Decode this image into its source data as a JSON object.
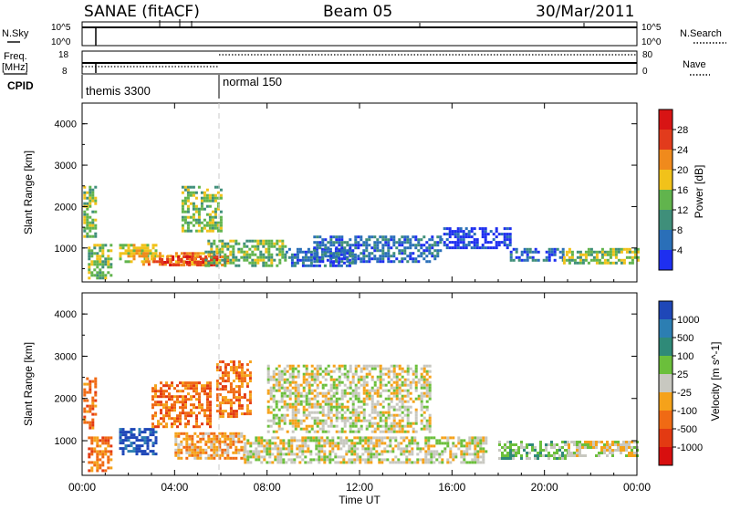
{
  "header": {
    "title": "SANAE (fitACF)",
    "beam": "Beam 05",
    "date": "30/Mar/2011"
  },
  "top_strip": {
    "left_label": "N.Sky",
    "left_ticks": [
      "10^5",
      "10^0"
    ],
    "right_ticks": [
      "10^5",
      "10^0"
    ],
    "right_label": "N.Search",
    "freq_label_1": "Freq.",
    "freq_label_2": "[MHz]",
    "freq_ticks": [
      "18",
      "8"
    ],
    "nave_ticks": [
      "80",
      "0"
    ],
    "nave_label": "Nave",
    "cpid_label": "CPID",
    "cpid_segments": [
      {
        "label": "themis 3300",
        "start_hour": 0.0
      },
      {
        "label": "normal 150",
        "start_hour": 6.0
      }
    ]
  },
  "x_axis": {
    "ticks": [
      "00:00",
      "04:00",
      "08:00",
      "12:00",
      "16:00",
      "20:00",
      "00:00"
    ],
    "label": "Time UT"
  },
  "y_axis": {
    "label": "Slant Range [km]",
    "ticks": [
      "1000",
      "2000",
      "3000",
      "4000"
    ]
  },
  "power_colorbar": {
    "label": "Power [dB]",
    "ticks": [
      "4",
      "8",
      "12",
      "16",
      "20",
      "24",
      "28"
    ],
    "colors": [
      "#1e2ff0",
      "#2a6fb8",
      "#3f8f7a",
      "#61b44d",
      "#f1c21a",
      "#f08a1c",
      "#e23b1c",
      "#d81414"
    ]
  },
  "velocity_colorbar": {
    "label": "Velocity [m s^-1]",
    "ticks": [
      "1000",
      "500",
      "100",
      "25",
      "-25",
      "-100",
      "-500",
      "-1000"
    ],
    "colors": [
      "#1f47b8",
      "#2c7eb2",
      "#2f8a78",
      "#6bbf3b",
      "#c8c8c0",
      "#f5a21a",
      "#f06a14",
      "#e33a12",
      "#d80f0f"
    ]
  },
  "chart_data": [
    {
      "type": "heatmap",
      "title": "Power",
      "xlabel": "Time UT",
      "ylabel": "Slant Range [km]",
      "xlim": [
        0,
        24
      ],
      "ylim": [
        180,
        4500
      ],
      "regions": [
        {
          "t0": 0.05,
          "t1": 0.55,
          "r0": 1300,
          "r1": 2500,
          "level": 3
        },
        {
          "t0": 0.25,
          "t1": 1.2,
          "r0": 300,
          "r1": 1100,
          "level": 3
        },
        {
          "t0": 1.6,
          "t1": 3.2,
          "r0": 700,
          "r1": 1100,
          "level": 4
        },
        {
          "t0": 2.6,
          "t1": 5.9,
          "r0": 600,
          "r1": 900,
          "level": 5
        },
        {
          "t0": 3.4,
          "t1": 6.3,
          "r0": 620,
          "r1": 820,
          "level": 6
        },
        {
          "t0": 4.3,
          "t1": 6.0,
          "r0": 1400,
          "r1": 2500,
          "level": 3
        },
        {
          "t0": 5.3,
          "t1": 8.8,
          "r0": 600,
          "r1": 1200,
          "level": 3
        },
        {
          "t0": 8.8,
          "t1": 11.8,
          "r0": 600,
          "r1": 1000,
          "level": 1
        },
        {
          "t0": 10.0,
          "t1": 15.5,
          "r0": 700,
          "r1": 1300,
          "level": 1
        },
        {
          "t0": 15.5,
          "t1": 18.5,
          "r0": 1000,
          "r1": 1500,
          "level": 0
        },
        {
          "t0": 18.5,
          "t1": 20.8,
          "r0": 700,
          "r1": 1000,
          "level": 1
        },
        {
          "t0": 20.8,
          "t1": 24.0,
          "r0": 650,
          "r1": 1000,
          "level": 3
        }
      ]
    },
    {
      "type": "heatmap",
      "title": "Velocity",
      "xlabel": "Time UT",
      "ylabel": "Slant Range [km]",
      "xlim": [
        0,
        24
      ],
      "ylim": [
        180,
        4500
      ],
      "regions": [
        {
          "t0": 0.05,
          "t1": 0.55,
          "r0": 1300,
          "r1": 2500,
          "level": 6
        },
        {
          "t0": 0.25,
          "t1": 1.2,
          "r0": 300,
          "r1": 1100,
          "level": 6
        },
        {
          "t0": 1.6,
          "t1": 3.2,
          "r0": 700,
          "r1": 1300,
          "level": 0
        },
        {
          "t0": 3.0,
          "t1": 5.5,
          "r0": 1300,
          "r1": 2400,
          "level": 6
        },
        {
          "t0": 4.0,
          "t1": 7.0,
          "r0": 600,
          "r1": 1200,
          "level": 5
        },
        {
          "t0": 5.8,
          "t1": 7.3,
          "r0": 1600,
          "r1": 2900,
          "level": 6
        },
        {
          "t0": 7.0,
          "t1": 17.5,
          "r0": 500,
          "r1": 1100,
          "level": 4
        },
        {
          "t0": 8.0,
          "t1": 15.0,
          "r0": 1200,
          "r1": 2800,
          "level": 4
        },
        {
          "t0": 18.0,
          "t1": 21.0,
          "r0": 600,
          "r1": 1000,
          "level": 3
        },
        {
          "t0": 21.0,
          "t1": 24.0,
          "r0": 650,
          "r1": 1000,
          "level": 4
        }
      ]
    }
  ]
}
